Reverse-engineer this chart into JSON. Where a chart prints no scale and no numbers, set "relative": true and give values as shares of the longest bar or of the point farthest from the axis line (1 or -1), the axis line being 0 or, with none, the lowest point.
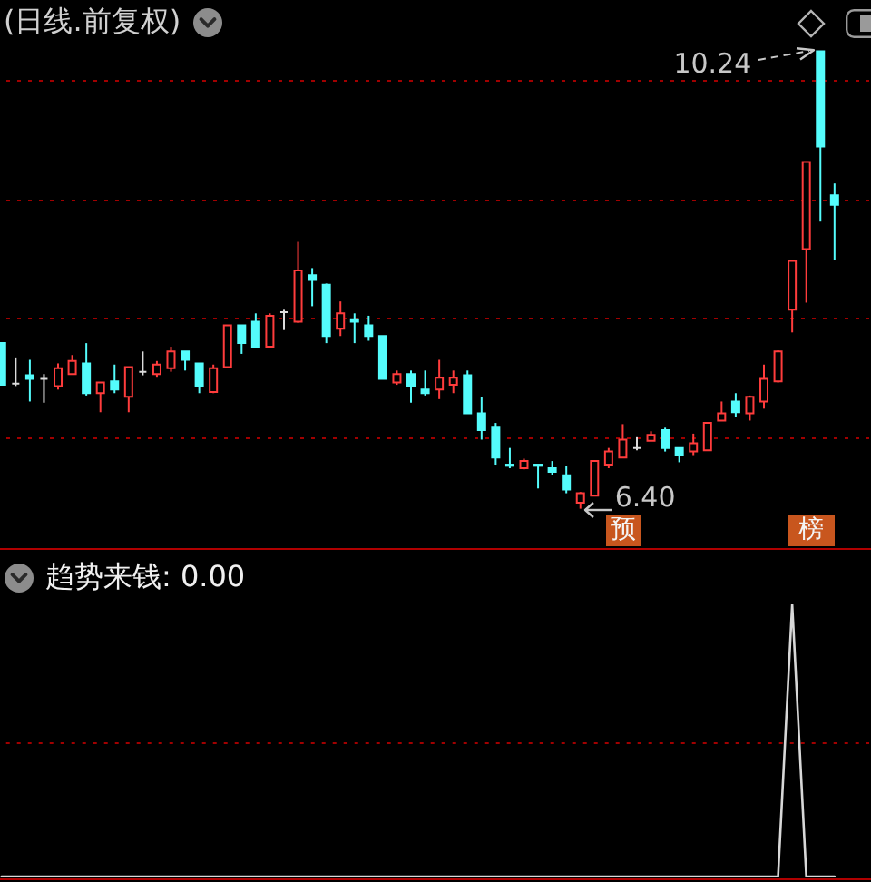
{
  "chart_data": [
    {
      "type": "candlestick",
      "title": "(日线.前复权)",
      "categories": [
        null,
        null,
        null,
        null,
        null,
        null,
        null,
        null,
        null,
        null,
        null,
        null,
        null,
        null,
        null,
        null,
        null,
        null,
        null,
        null,
        null,
        null,
        null,
        null,
        null,
        null,
        null,
        null,
        null,
        null,
        null,
        null,
        null,
        null,
        null,
        null,
        null,
        null,
        null,
        null,
        null,
        null,
        null,
        null,
        null,
        null,
        null,
        null,
        null,
        null,
        null,
        null,
        null,
        null,
        null,
        null,
        null,
        null,
        null,
        null
      ],
      "ohlc": [
        [
          7.79,
          7.79,
          7.44,
          7.44
        ],
        [
          7.45,
          7.67,
          7.43,
          7.45
        ],
        [
          7.52,
          7.65,
          7.3,
          7.49
        ],
        [
          7.49,
          7.53,
          7.29,
          7.49
        ],
        [
          7.43,
          7.62,
          7.4,
          7.58
        ],
        [
          7.53,
          7.69,
          7.53,
          7.64
        ],
        [
          7.62,
          7.79,
          7.35,
          7.37
        ],
        [
          7.37,
          7.46,
          7.21,
          7.46
        ],
        [
          7.47,
          7.61,
          7.37,
          7.4
        ],
        [
          7.34,
          7.59,
          7.21,
          7.59
        ],
        [
          7.55,
          7.72,
          7.52,
          7.55
        ],
        [
          7.53,
          7.64,
          7.5,
          7.61
        ],
        [
          7.58,
          7.76,
          7.55,
          7.72
        ],
        [
          7.72,
          7.72,
          7.56,
          7.65
        ],
        [
          7.62,
          7.62,
          7.37,
          7.43
        ],
        [
          7.38,
          7.61,
          7.37,
          7.58
        ],
        [
          7.59,
          7.94,
          7.58,
          7.94
        ],
        [
          7.94,
          7.94,
          7.7,
          7.79
        ],
        [
          7.97,
          8.04,
          7.76,
          7.76
        ],
        [
          7.76,
          8.04,
          7.76,
          8.02
        ],
        [
          8.05,
          8.07,
          7.9,
          8.05
        ],
        [
          7.97,
          8.64,
          7.96,
          8.4
        ],
        [
          8.36,
          8.42,
          8.1,
          8.32
        ],
        [
          8.28,
          8.29,
          7.79,
          7.85
        ],
        [
          7.91,
          8.14,
          7.85,
          8.04
        ],
        [
          7.99,
          8.04,
          7.79,
          7.97
        ],
        [
          7.94,
          8.02,
          7.81,
          7.85
        ],
        [
          7.85,
          7.85,
          7.49,
          7.49
        ],
        [
          7.46,
          7.56,
          7.44,
          7.53
        ],
        [
          7.53,
          7.56,
          7.29,
          7.43
        ],
        [
          7.4,
          7.56,
          7.35,
          7.37
        ],
        [
          7.4,
          7.65,
          7.32,
          7.5
        ],
        [
          7.44,
          7.56,
          7.37,
          7.5
        ],
        [
          7.52,
          7.56,
          7.2,
          7.2
        ],
        [
          7.2,
          7.34,
          6.98,
          7.06
        ],
        [
          7.08,
          7.12,
          6.77,
          6.83
        ],
        [
          6.77,
          6.91,
          6.74,
          6.76
        ],
        [
          6.74,
          6.82,
          6.73,
          6.8
        ],
        [
          6.77,
          6.77,
          6.57,
          6.76
        ],
        [
          6.74,
          6.8,
          6.68,
          6.71
        ],
        [
          6.68,
          6.76,
          6.53,
          6.56
        ],
        [
          6.45,
          6.54,
          6.4,
          6.53
        ],
        [
          6.51,
          6.8,
          6.51,
          6.8
        ],
        [
          6.77,
          6.91,
          6.74,
          6.88
        ],
        [
          6.83,
          7.11,
          6.83,
          6.98
        ],
        [
          6.91,
          7.0,
          6.89,
          6.91
        ],
        [
          6.97,
          7.05,
          6.97,
          7.02
        ],
        [
          7.06,
          7.08,
          6.88,
          6.91
        ],
        [
          6.91,
          6.91,
          6.79,
          6.85
        ],
        [
          6.88,
          7.03,
          6.85,
          6.95
        ],
        [
          6.89,
          7.12,
          6.89,
          7.12
        ],
        [
          7.14,
          7.3,
          7.14,
          7.2
        ],
        [
          7.3,
          7.37,
          7.17,
          7.21
        ],
        [
          7.2,
          7.35,
          7.14,
          7.34
        ],
        [
          7.3,
          7.61,
          7.24,
          7.49
        ],
        [
          7.47,
          7.73,
          7.46,
          7.72
        ],
        [
          8.07,
          8.48,
          7.88,
          8.48
        ],
        [
          8.58,
          9.31,
          8.13,
          9.31
        ],
        [
          10.24,
          10.24,
          8.81,
          9.44
        ],
        [
          9.03,
          9.13,
          8.49,
          8.95
        ]
      ],
      "colors": [
        "#54fcfc",
        "#dcdcdc",
        "#54fcfc",
        "#dcdcdc",
        "#ff3c3c",
        "#ff3c3c",
        "#54fcfc",
        "#ff3c3c",
        "#54fcfc",
        "#ff3c3c",
        "#dcdcdc",
        "#ff3c3c",
        "#ff3c3c",
        "#54fcfc",
        "#54fcfc",
        "#ff3c3c",
        "#ff3c3c",
        "#54fcfc",
        "#54fcfc",
        "#ff3c3c",
        "#dcdcdc",
        "#ff3c3c",
        "#54fcfc",
        "#54fcfc",
        "#ff3c3c",
        "#54fcfc",
        "#54fcfc",
        "#54fcfc",
        "#ff3c3c",
        "#54fcfc",
        "#54fcfc",
        "#ff3c3c",
        "#ff3c3c",
        "#54fcfc",
        "#54fcfc",
        "#54fcfc",
        "#54fcfc",
        "#ff3c3c",
        "#54fcfc",
        "#54fcfc",
        "#54fcfc",
        "#ff3c3c",
        "#ff3c3c",
        "#ff3c3c",
        "#ff3c3c",
        "#dcdcdc",
        "#ff3c3c",
        "#54fcfc",
        "#54fcfc",
        "#ff3c3c",
        "#ff3c3c",
        "#ff3c3c",
        "#54fcfc",
        "#ff3c3c",
        "#ff3c3c",
        "#ff3c3c",
        "#ff3c3c",
        "#ff3c3c",
        "#54fcfc",
        "#54fcfc"
      ],
      "ylim": [
        6.1,
        10.67
      ],
      "yticks": [
        {
          "value": 7,
          "label": null
        },
        {
          "value": 8,
          "label": null
        },
        {
          "value": 9,
          "label": null
        },
        {
          "value": 10,
          "label": null
        }
      ],
      "grid": "y",
      "annotations": [
        "10.24",
        "6.40",
        "预",
        "榜"
      ]
    },
    {
      "type": "line",
      "title": "趋势来钱: 0.00",
      "relative": true,
      "categories": [
        null,
        null,
        null,
        null,
        null,
        null,
        null,
        null,
        null,
        null,
        null,
        null,
        null,
        null,
        null,
        null,
        null,
        null,
        null,
        null,
        null,
        null,
        null,
        null,
        null,
        null,
        null,
        null,
        null,
        null,
        null,
        null,
        null,
        null,
        null,
        null,
        null,
        null,
        null,
        null,
        null,
        null,
        null,
        null,
        null,
        null,
        null,
        null,
        null,
        null,
        null,
        null,
        null,
        null,
        null,
        null,
        null,
        null,
        null,
        null
      ],
      "series": [
        {
          "color": "#d8d8d8",
          "values": [
            0,
            0,
            0,
            0,
            0,
            0,
            0,
            0,
            0,
            0,
            0,
            0,
            0,
            0,
            0,
            0,
            0,
            0,
            0,
            0,
            0,
            0,
            0,
            0,
            0,
            0,
            0,
            0,
            0,
            0,
            0,
            0,
            0,
            0,
            0,
            0,
            0,
            0,
            0,
            0,
            0,
            0,
            0,
            0,
            0,
            0,
            0,
            0,
            0,
            0,
            0,
            0,
            0,
            0,
            0,
            0,
            1,
            0,
            0,
            0
          ]
        }
      ],
      "ref_lines": [
        {
          "axis": "y",
          "value": 0.49,
          "color": "#a00000",
          "line_style": "dotted"
        }
      ]
    }
  ]
}
